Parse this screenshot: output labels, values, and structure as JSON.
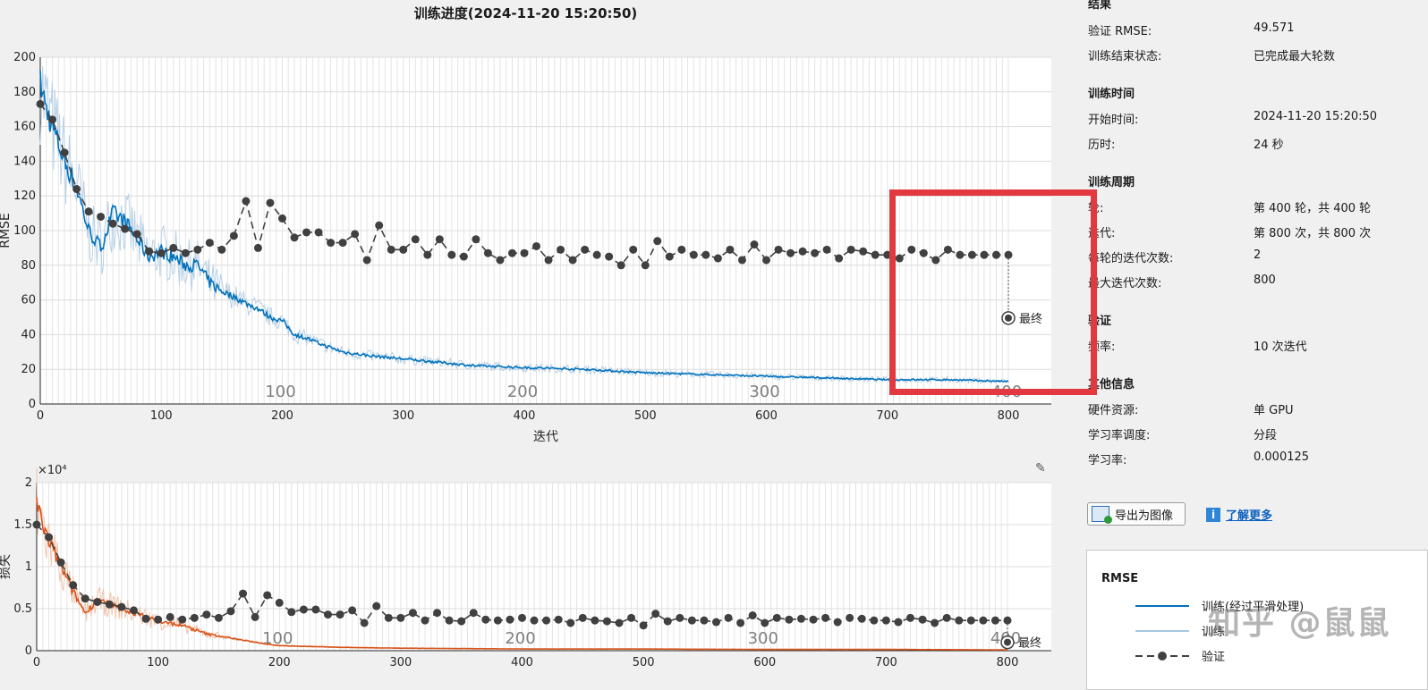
{
  "title": "训练进度(2024-11-20 15:20:50)",
  "colors": {
    "accent_blue": "#0072bd",
    "accent_orange": "#d95319",
    "validation": "#404040",
    "highlight": "#e2383f"
  },
  "rmse_plot": {
    "ylabel": "RMSE",
    "xlabel": "迭代",
    "yticks": [
      "0",
      "20",
      "40",
      "60",
      "80",
      "100",
      "120",
      "140",
      "160",
      "180",
      "200"
    ],
    "xticks": [
      "0",
      "100",
      "200",
      "300",
      "400",
      "500",
      "600",
      "700",
      "800"
    ],
    "epoch_labels": [
      "100",
      "200",
      "300",
      "400"
    ],
    "final_label": "最终"
  },
  "loss_plot": {
    "ylabel": "损失",
    "exponent_label": "×10⁴",
    "yticks": [
      "0",
      "0.5",
      "1",
      "1.5",
      "2"
    ],
    "xticks": [
      "0",
      "100",
      "200",
      "300",
      "400",
      "500",
      "600",
      "700",
      "800"
    ],
    "epoch_labels": [
      "100",
      "200",
      "300",
      "400"
    ],
    "final_label": "最终"
  },
  "chart_data": [
    {
      "type": "line",
      "ylabel": "RMSE",
      "xlabel": "迭代",
      "xlim": [
        0,
        800
      ],
      "ylim": [
        0,
        200
      ],
      "series": [
        {
          "name": "训练(经过平滑处理)",
          "x": [
            0,
            5,
            10,
            20,
            30,
            40,
            50,
            60,
            70,
            80,
            90,
            100,
            110,
            120,
            130,
            140,
            150,
            160,
            170,
            180,
            190,
            200,
            210,
            220,
            230,
            250,
            270,
            300,
            330,
            360,
            400,
            450,
            500,
            550,
            600,
            650,
            700,
            750,
            800
          ],
          "values": [
            185,
            170,
            160,
            140,
            125,
            100,
            90,
            110,
            105,
            95,
            85,
            88,
            85,
            80,
            80,
            70,
            65,
            62,
            58,
            55,
            50,
            48,
            40,
            38,
            35,
            30,
            28,
            26,
            24,
            22,
            21,
            20,
            18,
            17,
            16,
            15,
            14,
            14,
            13
          ]
        },
        {
          "name": "验证",
          "x": [
            0,
            10,
            20,
            30,
            40,
            50,
            60,
            70,
            80,
            90,
            100,
            110,
            120,
            130,
            140,
            150,
            160,
            170,
            180,
            190,
            200,
            210,
            220,
            230,
            240,
            250,
            260,
            270,
            280,
            290,
            300,
            310,
            320,
            330,
            340,
            350,
            360,
            370,
            380,
            390,
            400,
            410,
            420,
            430,
            440,
            450,
            460,
            470,
            480,
            490,
            500,
            510,
            520,
            530,
            540,
            550,
            560,
            570,
            580,
            590,
            600,
            610,
            620,
            630,
            640,
            650,
            660,
            670,
            680,
            690,
            700,
            710,
            720,
            730,
            740,
            750,
            760,
            770,
            780,
            790,
            800
          ],
          "values": [
            173,
            164,
            145,
            124,
            111,
            108,
            104,
            101,
            98,
            88,
            87,
            90,
            87,
            89,
            93,
            89,
            97,
            117,
            90,
            116,
            107,
            96,
            99,
            99,
            93,
            93,
            98,
            83,
            103,
            89,
            89,
            95,
            86,
            95,
            86,
            85,
            95,
            87,
            83,
            87,
            87,
            91,
            83,
            89,
            83,
            89,
            86,
            85,
            80,
            89,
            80,
            94,
            85,
            89,
            86,
            86,
            84,
            89,
            83,
            92,
            83,
            89,
            87,
            88,
            87,
            89,
            84,
            89,
            88,
            86,
            86,
            84,
            89,
            87,
            83,
            89,
            86,
            86,
            86,
            86,
            86
          ]
        }
      ],
      "final_validation": 49.571
    },
    {
      "type": "line",
      "ylabel": "损失",
      "xlim": [
        0,
        800
      ],
      "ylim": [
        0,
        2
      ],
      "y_scale_note": "×10⁴",
      "series": [
        {
          "name": "训练",
          "x": [
            0,
            5,
            10,
            20,
            30,
            40,
            50,
            60,
            80,
            100,
            120,
            140,
            160,
            180,
            200,
            250,
            300,
            400,
            500,
            600,
            700,
            800
          ],
          "values": [
            1.75,
            1.5,
            1.3,
            1.0,
            0.7,
            0.45,
            0.6,
            0.55,
            0.45,
            0.35,
            0.3,
            0.2,
            0.15,
            0.1,
            0.06,
            0.04,
            0.03,
            0.02,
            0.02,
            0.015,
            0.015,
            0.01
          ]
        },
        {
          "name": "验证",
          "x": [
            0,
            10,
            20,
            30,
            40,
            50,
            60,
            70,
            80,
            90,
            100,
            110,
            120,
            130,
            140,
            150,
            160,
            170,
            180,
            190,
            200,
            210,
            220,
            230,
            240,
            250,
            260,
            270,
            280,
            290,
            300,
            310,
            320,
            330,
            340,
            350,
            360,
            370,
            380,
            390,
            400,
            410,
            420,
            430,
            440,
            450,
            460,
            470,
            480,
            490,
            500,
            510,
            520,
            530,
            540,
            550,
            560,
            570,
            580,
            590,
            600,
            610,
            620,
            630,
            640,
            650,
            660,
            670,
            680,
            690,
            700,
            710,
            720,
            730,
            740,
            750,
            760,
            770,
            780,
            790,
            800
          ],
          "values": [
            1.5,
            1.35,
            1.05,
            0.78,
            0.62,
            0.58,
            0.55,
            0.52,
            0.48,
            0.38,
            0.37,
            0.4,
            0.37,
            0.39,
            0.43,
            0.39,
            0.47,
            0.68,
            0.4,
            0.66,
            0.57,
            0.46,
            0.49,
            0.49,
            0.43,
            0.43,
            0.48,
            0.33,
            0.53,
            0.39,
            0.39,
            0.45,
            0.36,
            0.45,
            0.36,
            0.35,
            0.45,
            0.37,
            0.36,
            0.37,
            0.39,
            0.36,
            0.36,
            0.37,
            0.33,
            0.39,
            0.36,
            0.35,
            0.33,
            0.39,
            0.3,
            0.44,
            0.35,
            0.39,
            0.36,
            0.36,
            0.34,
            0.39,
            0.33,
            0.42,
            0.33,
            0.39,
            0.37,
            0.38,
            0.37,
            0.39,
            0.34,
            0.39,
            0.38,
            0.36,
            0.36,
            0.34,
            0.39,
            0.37,
            0.33,
            0.39,
            0.36,
            0.36,
            0.36,
            0.36,
            0.36
          ]
        }
      ]
    }
  ],
  "results": {
    "section_title": "结果",
    "rows": [
      {
        "k": "验证 RMSE:",
        "v": "49.571"
      },
      {
        "k": "训练结束状态:",
        "v": "已完成最大轮数"
      }
    ]
  },
  "time": {
    "section_title": "训练时间",
    "rows": [
      {
        "k": "开始时间:",
        "v": "2024-11-20 15:20:50"
      },
      {
        "k": "历时:",
        "v": "24 秒"
      }
    ]
  },
  "cycle": {
    "section_title": "训练周期",
    "rows": [
      {
        "k": "轮:",
        "v": "第 400 轮，共 400 轮"
      },
      {
        "k": "迭代:",
        "v": "第 800 次，共 800 次"
      },
      {
        "k": "每轮的迭代次数:",
        "v": "2"
      },
      {
        "k": "最大迭代次数:",
        "v": "800"
      }
    ]
  },
  "validation": {
    "section_title": "验证",
    "rows": [
      {
        "k": "频率:",
        "v": "10 次迭代"
      }
    ]
  },
  "other": {
    "section_title": "其他信息",
    "rows": [
      {
        "k": "硬件资源:",
        "v": "单 GPU"
      },
      {
        "k": "学习率调度:",
        "v": "分段"
      },
      {
        "k": "学习率:",
        "v": "0.000125"
      }
    ]
  },
  "buttons": {
    "export_label": "导出为图像",
    "learn_more_label": "了解更多"
  },
  "legend": {
    "title": "RMSE",
    "items": [
      {
        "label": "训练(经过平滑处理)"
      },
      {
        "label": "训练"
      },
      {
        "label": "验证"
      }
    ]
  },
  "watermark": "知乎 @鼠鼠"
}
